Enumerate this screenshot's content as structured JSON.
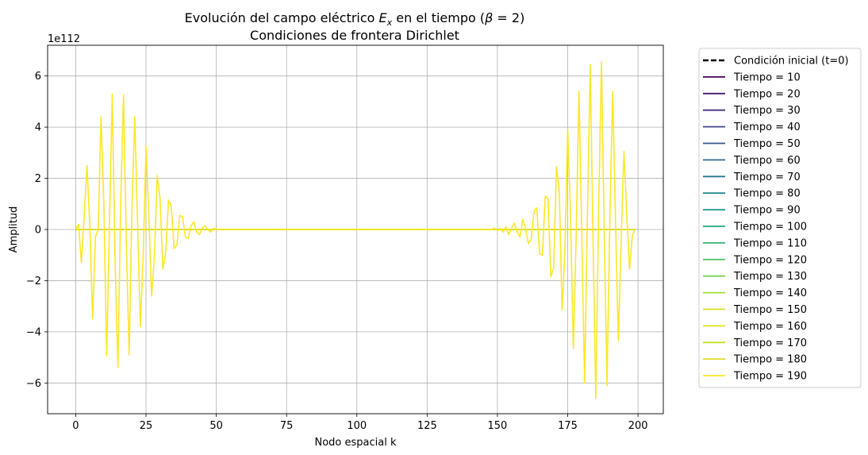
{
  "chart_data": {
    "type": "line",
    "title_line1": "Evolución del campo eléctrico E_x en el tiempo (β = 2)",
    "title_line1_parts": {
      "pre": "Evolución del campo eléctrico ",
      "E": "E",
      "sub": "x",
      "post": " en el tiempo (",
      "beta": "β",
      "eq": " = 2)"
    },
    "title_line2": "Condiciones de frontera Dirichlet",
    "xlabel": "Nodo espacial k",
    "ylabel": "Amplitud",
    "offset_text": "1e112",
    "xlim": [
      -10,
      209
    ],
    "ylim": [
      -7.2,
      7.2
    ],
    "xticks": [
      0,
      25,
      50,
      75,
      100,
      125,
      150,
      175,
      200
    ],
    "yticks": [
      -6,
      -4,
      -2,
      0,
      2,
      4,
      6
    ],
    "ytick_labels": [
      "−6",
      "−4",
      "−2",
      "0",
      "2",
      "4",
      "6"
    ],
    "grid": true,
    "legend_position": "outside-right",
    "initial_condition": {
      "name": "Condición inicial (t=0)",
      "color": "#000000",
      "style": "dashed",
      "x": [
        0,
        199
      ],
      "y": [
        0,
        0
      ]
    },
    "flat_series": [
      {
        "name": "Tiempo = 10",
        "color": "#440154"
      },
      {
        "name": "Tiempo = 20",
        "color": "#481a6c"
      },
      {
        "name": "Tiempo = 30",
        "color": "#472f7d"
      },
      {
        "name": "Tiempo = 40",
        "color": "#414487"
      },
      {
        "name": "Tiempo = 50",
        "color": "#39568c"
      },
      {
        "name": "Tiempo = 60",
        "color": "#31688e"
      },
      {
        "name": "Tiempo = 70",
        "color": "#2a788e"
      },
      {
        "name": "Tiempo = 80",
        "color": "#23888e"
      },
      {
        "name": "Tiempo = 90",
        "color": "#1f988b"
      },
      {
        "name": "Tiempo = 100",
        "color": "#22a884"
      },
      {
        "name": "Tiempo = 110",
        "color": "#35b779"
      },
      {
        "name": "Tiempo = 120",
        "color": "#54c568"
      },
      {
        "name": "Tiempo = 130",
        "color": "#7ad151"
      },
      {
        "name": "Tiempo = 140",
        "color": "#a5db36"
      },
      {
        "name": "Tiempo = 150",
        "color": "#d2e21b"
      },
      {
        "name": "Tiempo = 160",
        "color": "#e5e419"
      },
      {
        "name": "Tiempo = 170",
        "color": "#c2df23"
      },
      {
        "name": "Tiempo = 180",
        "color": "#e1dd37"
      }
    ],
    "final_series": {
      "name": "Tiempo = 190",
      "color": "#fde725",
      "points": [
        [
          0,
          0
        ],
        [
          1,
          0.2
        ],
        [
          2,
          -1.3
        ],
        [
          3,
          0.5
        ],
        [
          4,
          2.5
        ],
        [
          5,
          0.2
        ],
        [
          6,
          -3.5
        ],
        [
          7,
          -0.3
        ],
        [
          8,
          0
        ],
        [
          9,
          4.4
        ],
        [
          10,
          1.0
        ],
        [
          11,
          -4.95
        ],
        [
          12,
          0.2
        ],
        [
          13,
          5.3
        ],
        [
          14,
          -1.2
        ],
        [
          15,
          -5.4
        ],
        [
          16,
          1.0
        ],
        [
          17,
          5.25
        ],
        [
          18,
          -0.5
        ],
        [
          19,
          -4.9
        ],
        [
          20,
          0.9
        ],
        [
          21,
          4.4
        ],
        [
          22,
          0.2
        ],
        [
          23,
          -3.8
        ],
        [
          24,
          -1.0
        ],
        [
          25,
          3.25
        ],
        [
          26,
          0.6
        ],
        [
          27,
          -2.6
        ],
        [
          28,
          -1.0
        ],
        [
          29,
          2.1
        ],
        [
          30,
          1.2
        ],
        [
          31,
          -1.55
        ],
        [
          32,
          -0.9
        ],
        [
          33,
          1.15
        ],
        [
          34,
          0.9
        ],
        [
          35,
          -0.75
        ],
        [
          36,
          -0.6
        ],
        [
          37,
          0.55
        ],
        [
          38,
          0.5
        ],
        [
          39,
          -0.3
        ],
        [
          40,
          -0.35
        ],
        [
          41,
          0.15
        ],
        [
          42,
          0.3
        ],
        [
          43,
          -0.1
        ],
        [
          44,
          -0.2
        ],
        [
          45,
          0.05
        ],
        [
          46,
          0.15
        ],
        [
          47,
          0.0
        ],
        [
          48,
          -0.1
        ],
        [
          49,
          0.05
        ],
        [
          50,
          0
        ],
        [
          55,
          0
        ],
        [
          60,
          0
        ],
        [
          70,
          0
        ],
        [
          80,
          0
        ],
        [
          90,
          0
        ],
        [
          100,
          0
        ],
        [
          110,
          0
        ],
        [
          120,
          0
        ],
        [
          130,
          0
        ],
        [
          140,
          0
        ],
        [
          148,
          0
        ],
        [
          149,
          0.05
        ],
        [
          150,
          -0.05
        ],
        [
          151,
          0.05
        ],
        [
          152,
          -0.1
        ],
        [
          153,
          0.1
        ],
        [
          154,
          -0.2
        ],
        [
          155,
          0.05
        ],
        [
          156,
          0.25
        ],
        [
          157,
          -0.1
        ],
        [
          158,
          -0.3
        ],
        [
          159,
          0.4
        ],
        [
          160,
          0.05
        ],
        [
          161,
          -0.55
        ],
        [
          162,
          -0.4
        ],
        [
          163,
          0.7
        ],
        [
          164,
          0.85
        ],
        [
          165,
          -0.95
        ],
        [
          166,
          -1.0
        ],
        [
          167,
          1.3
        ],
        [
          168,
          1.2
        ],
        [
          169,
          -1.85
        ],
        [
          170,
          -1.5
        ],
        [
          171,
          2.45
        ],
        [
          172,
          1.5
        ],
        [
          173,
          -3.15
        ],
        [
          174,
          -0.9
        ],
        [
          175,
          3.9
        ],
        [
          176,
          0.5
        ],
        [
          177,
          -4.65
        ],
        [
          178,
          -0.3
        ],
        [
          179,
          5.4
        ],
        [
          180,
          -0.2
        ],
        [
          181,
          -6.0
        ],
        [
          182,
          0.5
        ],
        [
          183,
          6.45
        ],
        [
          184,
          -0.4
        ],
        [
          185,
          -6.6
        ],
        [
          186,
          0.8
        ],
        [
          187,
          6.55
        ],
        [
          188,
          -0.2
        ],
        [
          189,
          -6.1
        ],
        [
          190,
          0.5
        ],
        [
          191,
          5.4
        ],
        [
          192,
          0.3
        ],
        [
          193,
          -4.35
        ],
        [
          194,
          -0.5
        ],
        [
          195,
          3.05
        ],
        [
          196,
          0.6
        ],
        [
          197,
          -1.55
        ],
        [
          198,
          -0.2
        ],
        [
          199,
          0
        ]
      ]
    }
  }
}
